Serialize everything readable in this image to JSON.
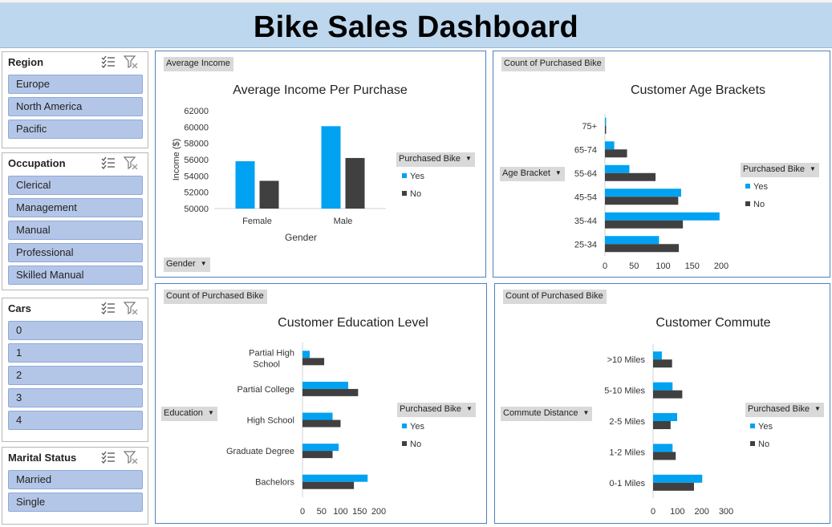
{
  "dashboard": {
    "title": "Bike Sales Dashboard"
  },
  "colors": {
    "yes": "#00a2f1",
    "no": "#404040",
    "banner": "#bdd7ee",
    "slicer_item": "#b4c6e7",
    "panel_border": "#4f81bd"
  },
  "slicers": {
    "region": {
      "title": "Region",
      "items": [
        "Europe",
        "North America",
        "Pacific"
      ]
    },
    "occupation": {
      "title": "Occupation",
      "items": [
        "Clerical",
        "Management",
        "Manual",
        "Professional",
        "Skilled Manual"
      ]
    },
    "cars": {
      "title": "Cars",
      "items": [
        "0",
        "1",
        "2",
        "3",
        "4"
      ]
    },
    "marital": {
      "title": "Marital Status",
      "items": [
        "Married",
        "Single"
      ]
    }
  },
  "icons": {
    "multiselect": "multi-select-icon",
    "clear_filter": "clear-filter-icon"
  },
  "panels": {
    "income": {
      "value_button": "Average Income",
      "axis_button": "Gender",
      "legend_button": "Purchased Bike"
    },
    "age": {
      "value_button": "Count of Purchased Bike",
      "axis_button": "Age Bracket",
      "legend_button": "Purchased Bike"
    },
    "education": {
      "value_button": "Count of Purchased Bike",
      "axis_button": "Education",
      "legend_button": "Purchased Bike"
    },
    "commute": {
      "value_button": "Count of Purchased Bike",
      "axis_button": "Commute Distance",
      "legend_button": "Purchased Bike"
    }
  },
  "chart_data": [
    {
      "id": "income",
      "type": "bar",
      "title": "Average Income Per Purchase",
      "xlabel": "Gender",
      "ylabel": "Income ($)",
      "categories": [
        "Female",
        "Male"
      ],
      "series": [
        {
          "name": "Yes",
          "values": [
            55800,
            60100
          ]
        },
        {
          "name": "No",
          "values": [
            53400,
            56200
          ]
        }
      ],
      "ylim": [
        50000,
        62000
      ],
      "yticks": [
        50000,
        52000,
        54000,
        56000,
        58000,
        60000,
        62000
      ],
      "grid": false,
      "legend": "right"
    },
    {
      "id": "age",
      "type": "bar",
      "orientation": "horizontal",
      "title": "Customer Age Brackets",
      "categories": [
        "25-34",
        "35-44",
        "45-54",
        "55-64",
        "65-74",
        "75+"
      ],
      "series": [
        {
          "name": "Yes",
          "values": [
            93,
            197,
            131,
            42,
            16,
            2
          ]
        },
        {
          "name": "No",
          "values": [
            127,
            134,
            126,
            87,
            38,
            2
          ]
        }
      ],
      "xlim": [
        0,
        200
      ],
      "xticks": [
        0,
        50,
        100,
        150,
        200
      ],
      "grid": false,
      "legend": "right"
    },
    {
      "id": "education",
      "type": "bar",
      "orientation": "horizontal",
      "title": "Customer Education Level",
      "categories": [
        "Bachelors",
        "Graduate Degree",
        "High School",
        "Partial College",
        "Partial High School"
      ],
      "series": [
        {
          "name": "Yes",
          "values": [
            171,
            95,
            79,
            120,
            19
          ]
        },
        {
          "name": "No",
          "values": [
            135,
            79,
            100,
            146,
            57
          ]
        }
      ],
      "xlim": [
        0,
        200
      ],
      "xticks": [
        0,
        50,
        100,
        150,
        200
      ],
      "grid": false,
      "legend": "right"
    },
    {
      "id": "commute",
      "type": "bar",
      "orientation": "horizontal",
      "title": "Customer Commute",
      "categories": [
        "0-1 Miles",
        "1-2 Miles",
        "2-5 Miles",
        "5-10 Miles",
        ">10 Miles"
      ],
      "series": [
        {
          "name": "Yes",
          "values": [
            202,
            80,
            99,
            80,
            36
          ]
        },
        {
          "name": "No",
          "values": [
            168,
            93,
            72,
            120,
            78
          ]
        }
      ],
      "xlim": [
        0,
        300
      ],
      "xticks": [
        0,
        100,
        200,
        300
      ],
      "grid": false,
      "legend": "right"
    }
  ]
}
